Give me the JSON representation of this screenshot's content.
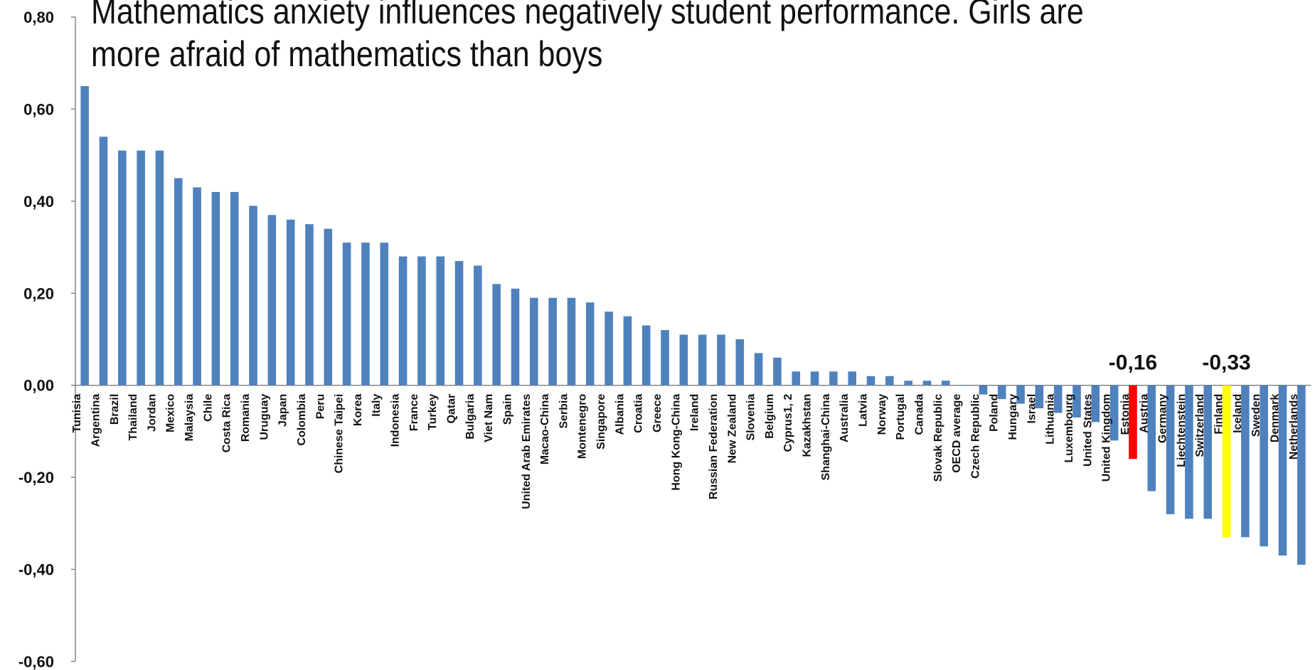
{
  "chart_data": {
    "type": "bar",
    "title": "Mathematics anxiety influences negatively student performance. Girls are more afraid of mathematics than boys",
    "xlabel": "",
    "ylabel": "",
    "ylim": [
      -0.6,
      0.8
    ],
    "yticks": [
      "0,80",
      "0,60",
      "0,40",
      "0,20",
      "0,00",
      "-0,20",
      "-0,40",
      "-0,60"
    ],
    "ytick_values": [
      0.8,
      0.6,
      0.4,
      0.2,
      0.0,
      -0.2,
      -0.4,
      -0.6
    ],
    "grid": false,
    "legend": "none",
    "bar_color": "#4f81bd",
    "categories": [
      "Tunisia",
      "Argentina",
      "Brazil",
      "Thailand",
      "Jordan",
      "Mexico",
      "Malaysia",
      "Chile",
      "Costa Rica",
      "Romania",
      "Uruguay",
      "Japan",
      "Colombia",
      "Peru",
      "Chinese Taipei",
      "Korea",
      "Italy",
      "Indonesia",
      "France",
      "Turkey",
      "Qatar",
      "Bulgaria",
      "Viet Nam",
      "Spain",
      "United Arab Emirates",
      "Macao-China",
      "Serbia",
      "Montenegro",
      "Singapore",
      "Albania",
      "Croatia",
      "Greece",
      "Hong Kong-China",
      "Ireland",
      "Russian Federation",
      "New Zealand",
      "Slovenia",
      "Belgium",
      "Cyprus1, 2",
      "Kazakhstan",
      "Shanghai-China",
      "Australia",
      "Latvia",
      "Norway",
      "Portugal",
      "Canada",
      "Slovak Republic",
      "OECD average",
      "Czech Republic",
      "Poland",
      "Hungary",
      "Israel",
      "Lithuania",
      "Luxembourg",
      "United States",
      "United Kingdom",
      "Estonia",
      "Austria",
      "Germany",
      "Liechtenstein",
      "Switzerland",
      "Finland",
      "Iceland",
      "Sweden",
      "Denmark",
      "Netherlands"
    ],
    "values": [
      0.65,
      0.54,
      0.51,
      0.51,
      0.51,
      0.45,
      0.43,
      0.42,
      0.42,
      0.39,
      0.37,
      0.36,
      0.35,
      0.34,
      0.31,
      0.31,
      0.31,
      0.28,
      0.28,
      0.28,
      0.27,
      0.26,
      0.22,
      0.21,
      0.19,
      0.19,
      0.19,
      0.18,
      0.16,
      0.15,
      0.13,
      0.12,
      0.11,
      0.11,
      0.11,
      0.1,
      0.07,
      0.06,
      0.03,
      0.03,
      0.03,
      0.03,
      0.02,
      0.02,
      0.01,
      0.01,
      0.01,
      0.0,
      -0.02,
      -0.03,
      -0.04,
      -0.05,
      -0.06,
      -0.07,
      -0.08,
      -0.12,
      -0.16,
      -0.23,
      -0.28,
      -0.29,
      -0.29,
      -0.33,
      -0.33,
      -0.35,
      -0.37,
      -0.39
    ],
    "highlights": [
      {
        "category": "Estonia",
        "color": "#ff0000",
        "label": "-0,16"
      },
      {
        "category": "Finland",
        "color": "#ffff00",
        "label": "-0,33"
      }
    ]
  }
}
